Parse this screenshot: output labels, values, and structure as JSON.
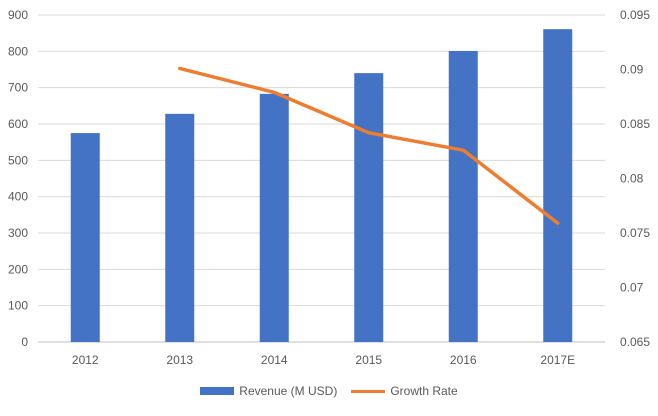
{
  "chart_data": {
    "type": "bar",
    "categories": [
      "2012",
      "2013",
      "2014",
      "2015",
      "2016",
      "2017E"
    ],
    "series": [
      {
        "name": "Revenue (M USD)",
        "type": "bar",
        "axis": "left",
        "color": "#4472C4",
        "values": [
          575,
          628,
          683,
          740,
          801,
          861
        ]
      },
      {
        "name": "Growth Rate",
        "type": "line",
        "axis": "right",
        "color": "#ED7D31",
        "values": [
          null,
          0.0901,
          0.0879,
          0.0842,
          0.0826,
          0.0759
        ]
      }
    ],
    "left_axis": {
      "ylim": [
        0,
        900
      ],
      "ticks": [
        "0",
        "100",
        "200",
        "300",
        "400",
        "500",
        "600",
        "700",
        "800",
        "900"
      ]
    },
    "right_axis": {
      "ylim": [
        0.065,
        0.095
      ],
      "ticks": [
        "0.065",
        "0.07",
        "0.075",
        "0.08",
        "0.085",
        "0.09",
        "0.095"
      ]
    },
    "grid": true,
    "legend": "bottom"
  }
}
